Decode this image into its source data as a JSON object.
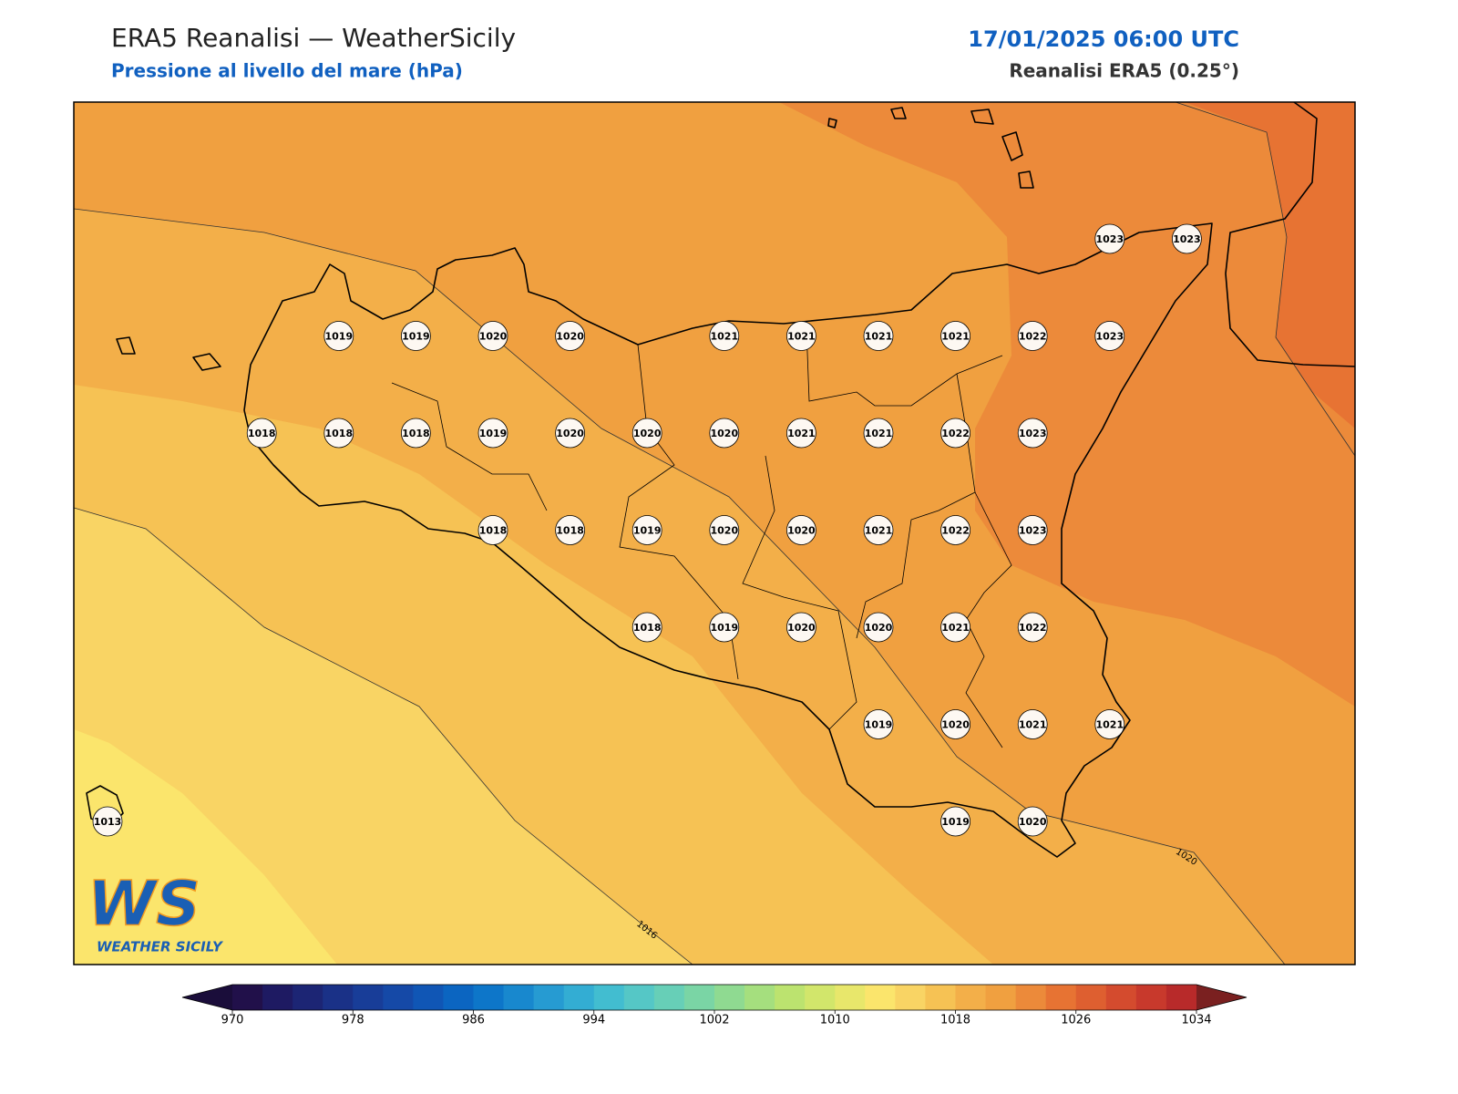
{
  "header": {
    "title": "ERA5 Reanalisi — WeatherSicily",
    "subtitle": "Pressione al livello del mare (hPa)",
    "datetime": "17/01/2025 06:00 UTC",
    "source": "Reanalisi ERA5 (0.25°)"
  },
  "stations": [
    [
      null,
      null,
      null,
      null,
      null,
      null,
      null,
      null,
      null,
      null,
      null,
      null,
      null,
      1023,
      1023
    ],
    [
      null,
      null,
      null,
      1019,
      1019,
      1020,
      1020,
      null,
      1021,
      1021,
      1021,
      1021,
      1022,
      1023,
      null
    ],
    [
      null,
      null,
      1018,
      1018,
      1018,
      1019,
      1020,
      1020,
      1020,
      1021,
      1021,
      1022,
      1023,
      null,
      null
    ],
    [
      null,
      null,
      null,
      null,
      null,
      1018,
      1018,
      1019,
      1020,
      1020,
      1021,
      1022,
      1023,
      null,
      null
    ],
    [
      null,
      null,
      null,
      null,
      null,
      null,
      null,
      1018,
      1019,
      1020,
      1020,
      1021,
      1022,
      null,
      null
    ],
    [
      null,
      null,
      null,
      null,
      null,
      null,
      null,
      null,
      null,
      null,
      1019,
      1020,
      1021,
      1021,
      null
    ],
    [
      1013,
      null,
      null,
      null,
      null,
      null,
      null,
      null,
      null,
      null,
      null,
      1019,
      1020,
      null,
      null
    ]
  ],
  "contour_labels": [
    1016,
    1020
  ],
  "colorbar": {
    "lim": [
      970,
      1034
    ],
    "ticks": [
      970,
      978,
      986,
      994,
      1002,
      1010,
      1018,
      1026,
      1034
    ],
    "colors": [
      "#21104a",
      "#1e1a62",
      "#1c2574",
      "#1a3187",
      "#183d98",
      "#1549a7",
      "#1056b5",
      "#0b65c1",
      "#0d76c9",
      "#1888ce",
      "#269bd2",
      "#33add3",
      "#42bdd0",
      "#55c7c6",
      "#67cfb7",
      "#7ad5a5",
      "#8fda91",
      "#a5df7e",
      "#bce36f",
      "#d2e66b",
      "#e8e76b",
      "#fbe56c",
      "#f9d464",
      "#f6c254",
      "#f3af49",
      "#f0a040",
      "#ec8a3a",
      "#e77333",
      "#de5f30",
      "#d44b2e",
      "#c8392c",
      "#b82a2a"
    ],
    "under_color": "#1a0d3a",
    "over_color": "#7a2020"
  },
  "logo": {
    "mark": "WS",
    "text": "WEATHER SICILY"
  }
}
